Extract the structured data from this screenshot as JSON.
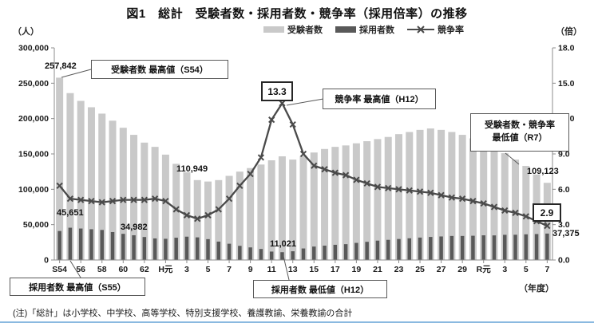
{
  "title": "図1　総計　受験者数・採用者数・競争率（採用倍率）の推移",
  "note": "(注)「総計」は小学校、中学校、高等学校、特別支援学校、養護教諭、栄養教諭の合計",
  "axes": {
    "left_unit": "（人）",
    "right_unit": "（倍）",
    "x_unit": "（年度）",
    "left_ticks": [
      "300,000",
      "250,000",
      "200,000",
      "150,000",
      "100,000",
      "50,000",
      "0"
    ],
    "right_ticks": [
      "18.0",
      "15.0",
      "12.0",
      "9.0",
      "6.0",
      "3.0",
      "0.0"
    ]
  },
  "legend": [
    {
      "label": "受験者数",
      "type": "bar",
      "color": "#c9c9c9"
    },
    {
      "label": "採用者数",
      "type": "bar",
      "color": "#595959"
    },
    {
      "label": "競争率",
      "type": "line",
      "color": "#4a4a4a"
    }
  ],
  "annotations": {
    "applicants_max_box": "受験者数 最高値（S54）",
    "applicants_max_value": "257,842",
    "hired_max_box": "採用者数 最高値（S55）",
    "hired_max_value": "45,651",
    "hired_mid_value": "34,982",
    "applicants_local_min_value": "110,949",
    "rate_max_box": "競争率 最高値（H12）",
    "rate_max_value": "13.3",
    "hired_min_box": "採用者数 最低値（H12）",
    "hired_min_value": "11,021",
    "r7_min_box_line1": "受験者数・競争率",
    "r7_min_box_line2": "最低値（R7）",
    "applicants_min_value": "109,123",
    "rate_min_value": "2.9",
    "hired_last_value": "37,375"
  },
  "chart_data": {
    "type": "bar+line",
    "grid": false,
    "legend_position": "top",
    "ylim_left": [
      0,
      300000
    ],
    "ylim_right": [
      0,
      18
    ],
    "left_tick_step": 50000,
    "right_tick_step": 3.0,
    "categories": [
      "S54",
      "S55",
      "S56",
      "S57",
      "S58",
      "S59",
      "S60",
      "S61",
      "S62",
      "S63",
      "H元",
      "H2",
      "H3",
      "H4",
      "H5",
      "H6",
      "H7",
      "H8",
      "H9",
      "H10",
      "H11",
      "H12",
      "H13",
      "H14",
      "H15",
      "H16",
      "H17",
      "H18",
      "H19",
      "H20",
      "H21",
      "H22",
      "H23",
      "H24",
      "H25",
      "H26",
      "H27",
      "H28",
      "H29",
      "H30",
      "R元",
      "R2",
      "R3",
      "R4",
      "R5",
      "R6",
      "R7"
    ],
    "x_tick_labels": [
      {
        "i": 0,
        "label": "S54"
      },
      {
        "i": 2,
        "label": "56"
      },
      {
        "i": 4,
        "label": "58"
      },
      {
        "i": 6,
        "label": "60"
      },
      {
        "i": 8,
        "label": "62"
      },
      {
        "i": 10,
        "label": "H元"
      },
      {
        "i": 12,
        "label": "3"
      },
      {
        "i": 14,
        "label": "5"
      },
      {
        "i": 16,
        "label": "7"
      },
      {
        "i": 18,
        "label": "9"
      },
      {
        "i": 20,
        "label": "11"
      },
      {
        "i": 22,
        "label": "13"
      },
      {
        "i": 24,
        "label": "15"
      },
      {
        "i": 26,
        "label": "17"
      },
      {
        "i": 28,
        "label": "19"
      },
      {
        "i": 30,
        "label": "21"
      },
      {
        "i": 32,
        "label": "23"
      },
      {
        "i": 34,
        "label": "25"
      },
      {
        "i": 36,
        "label": "27"
      },
      {
        "i": 38,
        "label": "29"
      },
      {
        "i": 40,
        "label": "R元"
      },
      {
        "i": 42,
        "label": "3"
      },
      {
        "i": 44,
        "label": "5"
      },
      {
        "i": 46,
        "label": "7"
      }
    ],
    "series": [
      {
        "name": "受験者数",
        "axis": "left",
        "type": "bar",
        "color": "#c9c9c9",
        "values": [
          257842,
          236000,
          225000,
          216000,
          207000,
          197000,
          187000,
          177000,
          166000,
          160000,
          149000,
          136000,
          124000,
          113000,
          110949,
          113000,
          119000,
          125000,
          130000,
          135000,
          141000,
          146600,
          142000,
          147000,
          152000,
          157000,
          160000,
          162000,
          165000,
          168000,
          171000,
          174000,
          178000,
          181000,
          184000,
          186000,
          184000,
          181000,
          177000,
          172000,
          166000,
          158000,
          151000,
          142000,
          133000,
          121000,
          109123
        ]
      },
      {
        "name": "採用者数",
        "axis": "left",
        "type": "bar",
        "color": "#595959",
        "values": [
          41000,
          45651,
          44500,
          43500,
          42500,
          39500,
          37000,
          34982,
          32500,
          30500,
          30000,
          31500,
          33000,
          32000,
          29500,
          26000,
          23000,
          20000,
          17800,
          15600,
          11900,
          11021,
          12350,
          16300,
          19000,
          20300,
          21500,
          22400,
          24200,
          25700,
          27400,
          28500,
          29700,
          30700,
          31700,
          32600,
          33300,
          34000,
          34000,
          34300,
          34900,
          34800,
          35600,
          35700,
          36300,
          36700,
          37375
        ]
      },
      {
        "name": "競争率",
        "axis": "right",
        "type": "line",
        "color": "#4a4a4a",
        "marker": "x",
        "values": [
          6.3,
          5.2,
          5.1,
          5.0,
          4.9,
          5.0,
          5.1,
          5.1,
          5.1,
          5.2,
          5.0,
          4.3,
          3.8,
          3.5,
          3.8,
          4.3,
          5.2,
          6.3,
          7.3,
          8.7,
          11.9,
          13.3,
          11.5,
          9.0,
          8.0,
          7.7,
          7.4,
          7.2,
          6.8,
          6.5,
          6.2,
          6.1,
          6.0,
          5.9,
          5.8,
          5.7,
          5.5,
          5.3,
          5.2,
          5.0,
          4.8,
          4.5,
          4.2,
          4.0,
          3.7,
          3.3,
          2.9
        ]
      }
    ]
  }
}
